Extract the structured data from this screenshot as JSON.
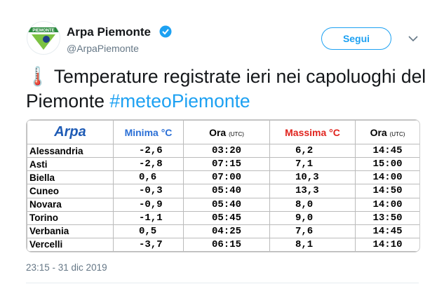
{
  "header": {
    "avatar_label": "PIEMONTE",
    "name": "Arpa Piemonte",
    "handle": "@ArpaPiemonte",
    "follow": "Segui"
  },
  "tweet": {
    "emoji": "🌡️",
    "text": "Temperature registrate ieri nei capoluoghi del Piemonte",
    "hashtag": "#meteoPiemonte"
  },
  "table": {
    "logo": "Arpa",
    "columns": [
      "Minima °C",
      "Ora",
      "Massima °C",
      "Ora"
    ],
    "unit": "(UTC)",
    "rows": [
      [
        "Alessandria",
        "-2,6",
        "03:20",
        "6,2",
        "14:45"
      ],
      [
        "Asti",
        "-2,8",
        "07:15",
        "7,1",
        "15:00"
      ],
      [
        "Biella",
        "0,6",
        "07:00",
        "10,3",
        "14:00"
      ],
      [
        "Cuneo",
        "-0,3",
        "05:40",
        "13,3",
        "14:50"
      ],
      [
        "Novara",
        "-0,9",
        "05:40",
        "8,0",
        "14:00"
      ],
      [
        "Torino",
        "-1,1",
        "05:45",
        "9,0",
        "13:50"
      ],
      [
        "Verbania",
        "0,5",
        "04:25",
        "7,6",
        "14:45"
      ],
      [
        "Vercelli",
        "-3,7",
        "06:15",
        "8,1",
        "14:10"
      ]
    ]
  },
  "timestamp": "23:15 - 31 dic 2019"
}
